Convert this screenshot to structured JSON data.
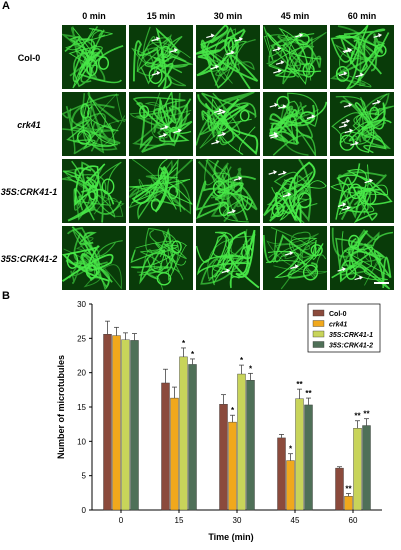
{
  "panel_a": {
    "letter": "A",
    "time_headers": [
      "0 min",
      "15 min",
      "30 min",
      "45 min",
      "60 min"
    ],
    "rows": [
      {
        "label": "Col-0",
        "italic": false
      },
      {
        "label": "crk41",
        "italic": true
      },
      {
        "label": "35S:CRK41-1",
        "italic": true
      },
      {
        "label": "35S:CRK41-2",
        "italic": true
      }
    ]
  },
  "panel_b": {
    "letter": "B"
  },
  "colors": {
    "col0": "#8b4a3c",
    "crk41": "#f0a81c",
    "crk41_1": "#c8d45a",
    "crk41_2": "#4f7058",
    "microscopy_dark": "#093b09",
    "microscopy_bright": "#48e848",
    "arrow": "#ffffff"
  },
  "chart_data": {
    "type": "bar",
    "title": "",
    "xlabel": "Time (min)",
    "ylabel": "Number of microtubules",
    "categories": [
      "0",
      "15",
      "30",
      "45",
      "60"
    ],
    "ylim": [
      0,
      30
    ],
    "yticks": [
      0,
      5,
      10,
      15,
      20,
      25,
      30
    ],
    "legend_position": "top-right",
    "series": [
      {
        "name": "Col-0",
        "values": [
          25.6,
          18.5,
          15.4,
          10.5,
          6.1
        ],
        "errors": [
          1.9,
          2.0,
          1.4,
          0.5,
          0.2
        ],
        "sig": [
          "",
          "",
          "",
          "",
          ""
        ]
      },
      {
        "name": "crk41",
        "values": [
          25.4,
          16.3,
          12.8,
          7.2,
          2.0
        ],
        "errors": [
          1.2,
          1.6,
          1.0,
          1.0,
          0.4
        ],
        "sig": [
          "",
          "",
          "*",
          "*",
          "**"
        ]
      },
      {
        "name": "35S:CRK41-1",
        "values": [
          24.8,
          22.3,
          19.8,
          16.2,
          11.9
        ],
        "errors": [
          1.0,
          1.3,
          1.3,
          1.4,
          1.1
        ],
        "sig": [
          "",
          "*",
          "*",
          "**",
          "**"
        ]
      },
      {
        "name": "35S:CRK41-2",
        "values": [
          24.7,
          21.2,
          18.9,
          15.3,
          12.3
        ],
        "errors": [
          1.0,
          0.8,
          1.0,
          1.0,
          1.0
        ],
        "sig": [
          "",
          "*",
          "*",
          "**",
          "**"
        ]
      }
    ]
  }
}
